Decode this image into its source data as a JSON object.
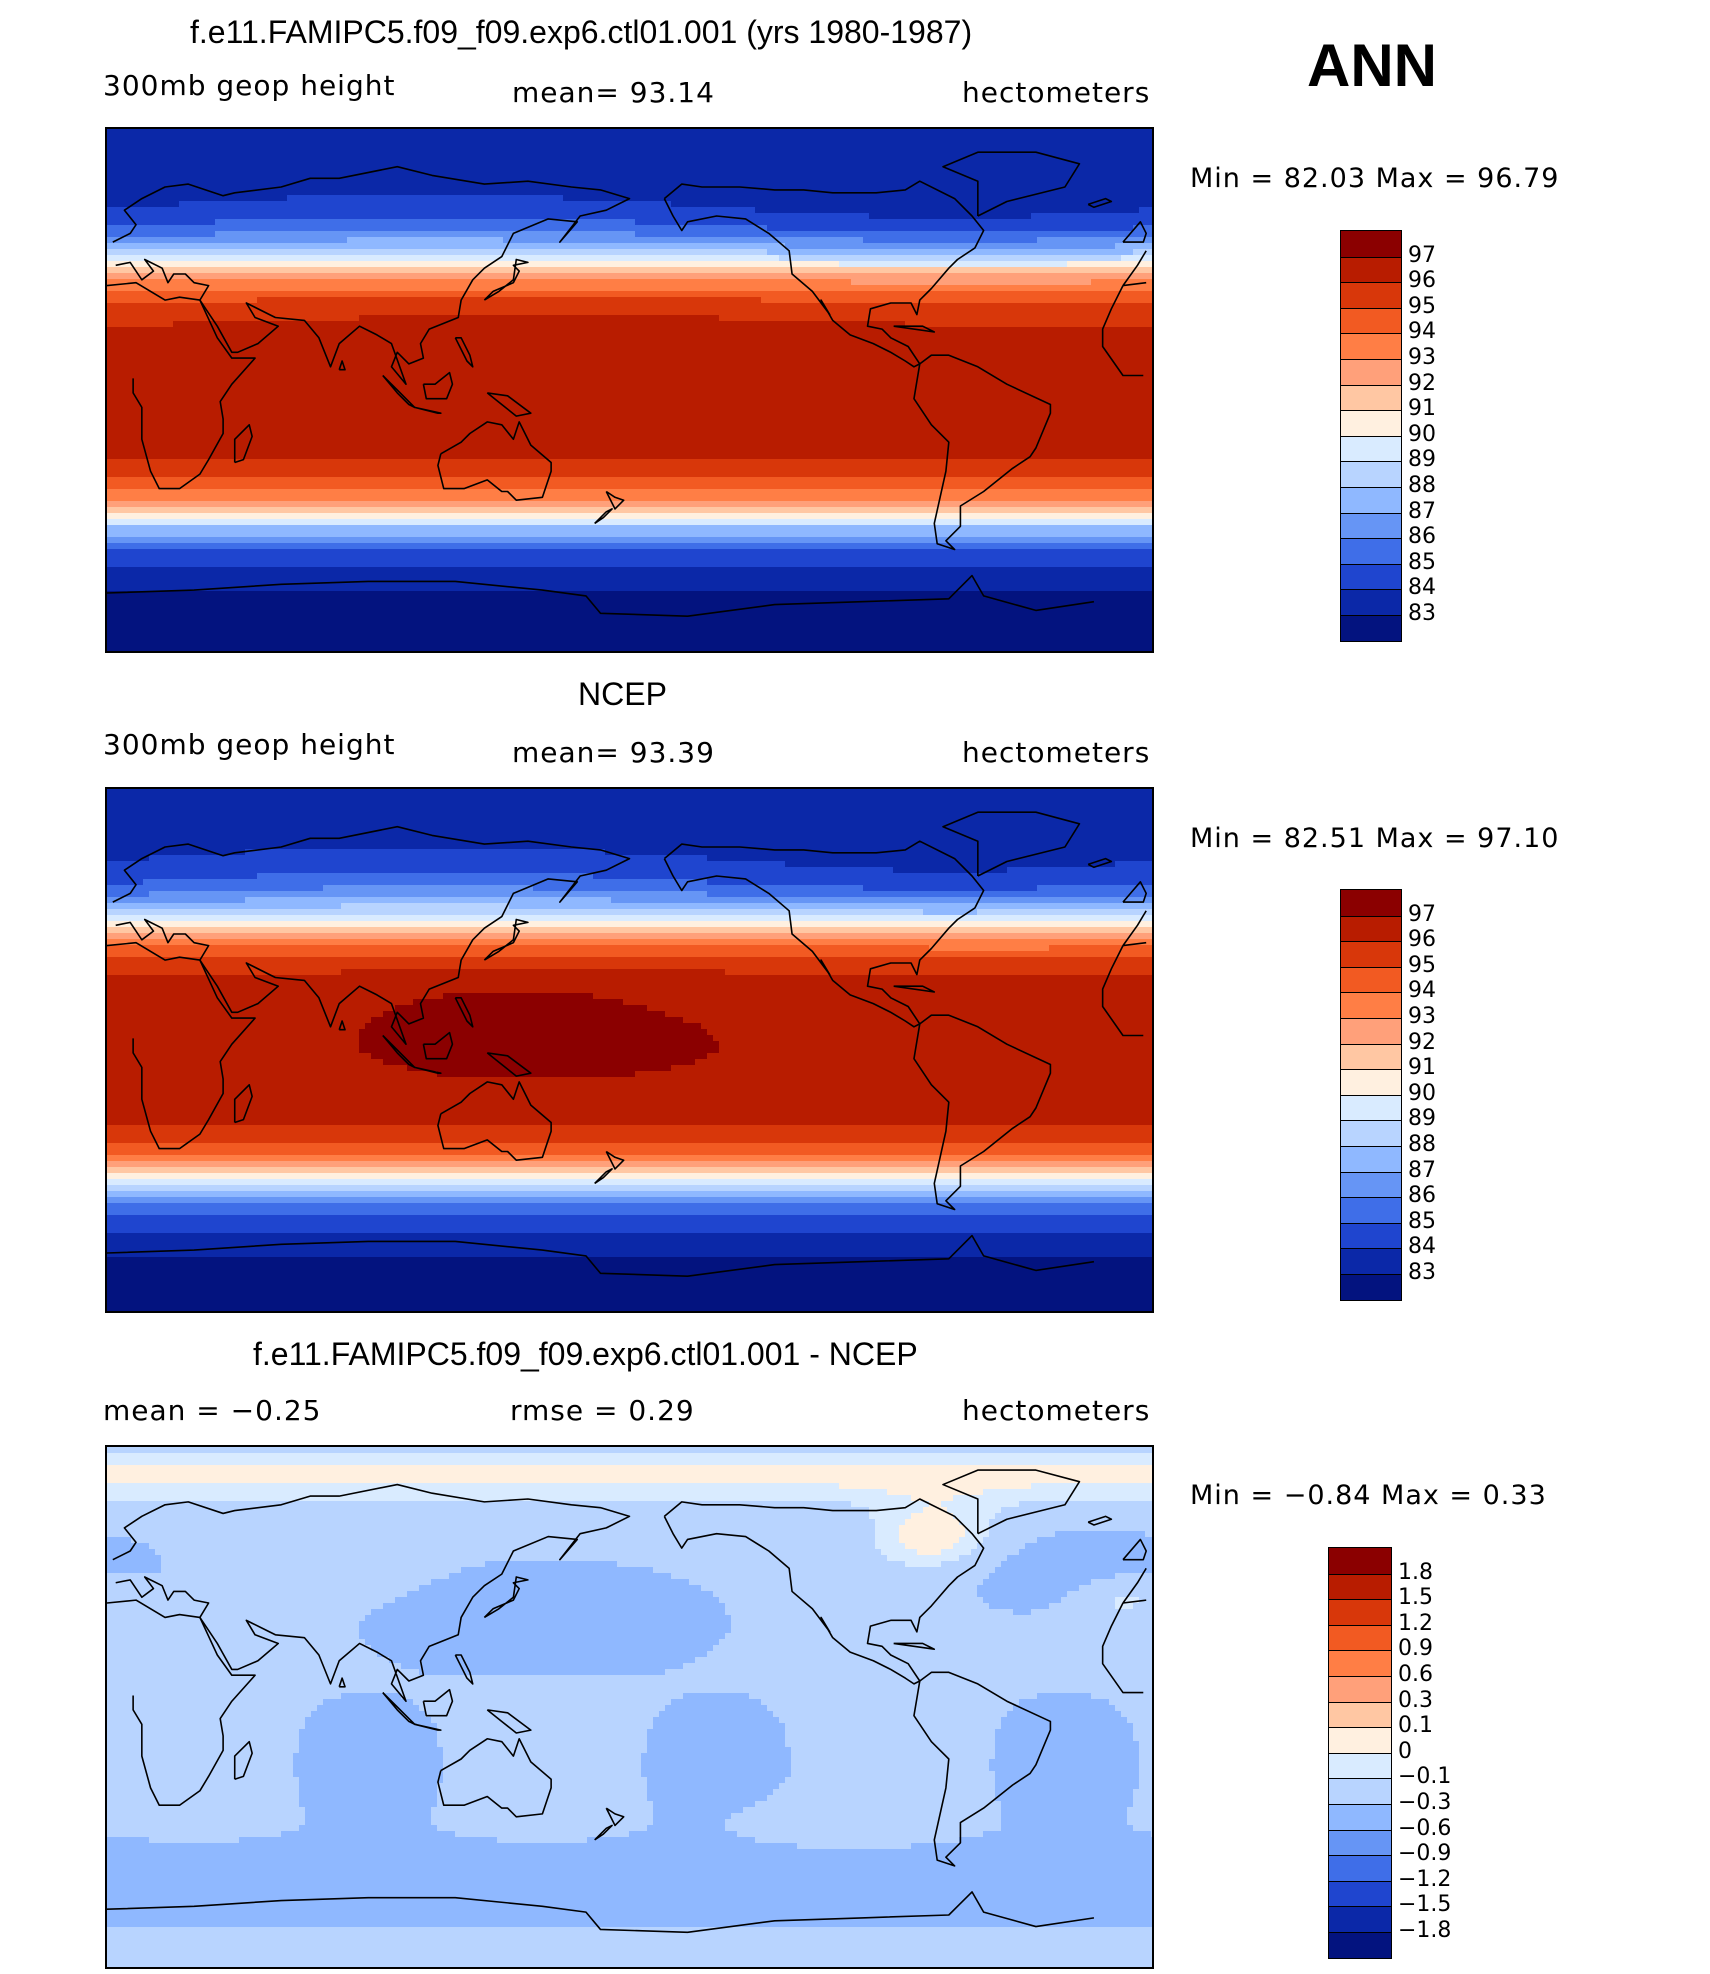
{
  "season": "ANN",
  "panels": [
    {
      "title": "f.e11.FAMIPC5.f09_f09.exp6.ctl01.001 (yrs 1980-1987)",
      "left_label": "300mb  geop  height",
      "center_label": "mean=   93.14",
      "right_label": "hectometers",
      "minmax": "Min  =    82.03  Max  =    96.79",
      "min": 82.03,
      "max": 96.79,
      "field": "model",
      "levels": [
        "97",
        "96",
        "95",
        "94",
        "93",
        "92",
        "91",
        "90",
        "89",
        "88",
        "87",
        "86",
        "85",
        "84",
        "83"
      ],
      "colors": [
        "#8b0000",
        "#b81c00",
        "#d8370a",
        "#f25a22",
        "#ff7e45",
        "#ffa07a",
        "#ffc7a3",
        "#fff0e0",
        "#d9ebff",
        "#b8d4ff",
        "#8fb8ff",
        "#6695f5",
        "#3f6ee8",
        "#1f45cf",
        "#0b28a8",
        "#03137f"
      ]
    },
    {
      "title": "NCEP",
      "left_label": "300mb  geop  height",
      "center_label": "mean=   93.39",
      "right_label": "hectometers",
      "minmax": "Min  =    82.51  Max  =    97.10",
      "min": 82.51,
      "max": 97.1,
      "field": "obs",
      "levels": [
        "97",
        "96",
        "95",
        "94",
        "93",
        "92",
        "91",
        "90",
        "89",
        "88",
        "87",
        "86",
        "85",
        "84",
        "83"
      ],
      "colors": [
        "#8b0000",
        "#b81c00",
        "#d8370a",
        "#f25a22",
        "#ff7e45",
        "#ffa07a",
        "#ffc7a3",
        "#fff0e0",
        "#d9ebff",
        "#b8d4ff",
        "#8fb8ff",
        "#6695f5",
        "#3f6ee8",
        "#1f45cf",
        "#0b28a8",
        "#03137f"
      ]
    },
    {
      "title": "f.e11.FAMIPC5.f09_f09.exp6.ctl01.001 - NCEP",
      "left_label": "mean  =    −0.25",
      "center_label": "rmse  =     0.29",
      "right_label": "hectometers",
      "minmax": "Min  =   −0.84  Max  =      0.33",
      "min": -0.84,
      "max": 0.33,
      "field": "diff",
      "levels": [
        "1.8",
        "1.5",
        "1.2",
        "0.9",
        "0.6",
        "0.3",
        "0.1",
        "0",
        "−0.1",
        "−0.3",
        "−0.6",
        "−0.9",
        "−1.2",
        "−1.5",
        "−1.8"
      ],
      "colors": [
        "#8b0000",
        "#b81c00",
        "#d8370a",
        "#f25a22",
        "#ff7e45",
        "#ffa07a",
        "#ffc7a3",
        "#fff0e0",
        "#d9ebff",
        "#b8d4ff",
        "#8fb8ff",
        "#6695f5",
        "#3f6ee8",
        "#1f45cf",
        "#0b28a8",
        "#03137f"
      ]
    }
  ]
}
